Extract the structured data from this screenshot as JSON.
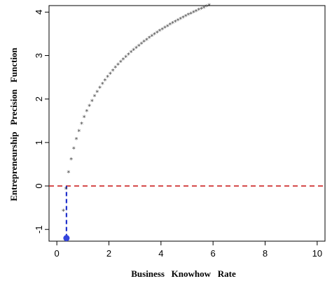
{
  "chart_data": {
    "type": "scatter",
    "title": "",
    "xlabel": "Business   Knowhow   Rate",
    "ylabel": "Entrepreneurship   Precision   Function",
    "xlim": [
      -0.3,
      10.3
    ],
    "ylim": [
      -1.27,
      4.15
    ],
    "xticks": [
      0,
      2,
      4,
      6,
      8,
      10
    ],
    "yticks": [
      -1,
      0,
      1,
      2,
      3,
      4
    ],
    "grid": false,
    "marker": "*",
    "series": [
      {
        "color": "#404040",
        "curve": "y = 1.5 * ln(x) + 1.5",
        "x_range": [
          0.05,
          10.0
        ],
        "x_step": 0.1,
        "note": ""
      }
    ],
    "reference_lines": [
      {
        "orientation": "horizontal",
        "y": 0,
        "color": "#cc2222",
        "style": "dashed"
      },
      {
        "orientation": "vertical",
        "x": 0.37,
        "y_from": -1.2,
        "y_to": 0,
        "color": "#2233cc",
        "style": "dashed"
      }
    ],
    "highlight_point": {
      "x": 0.37,
      "y": -1.2,
      "color": "#3344dd"
    }
  }
}
